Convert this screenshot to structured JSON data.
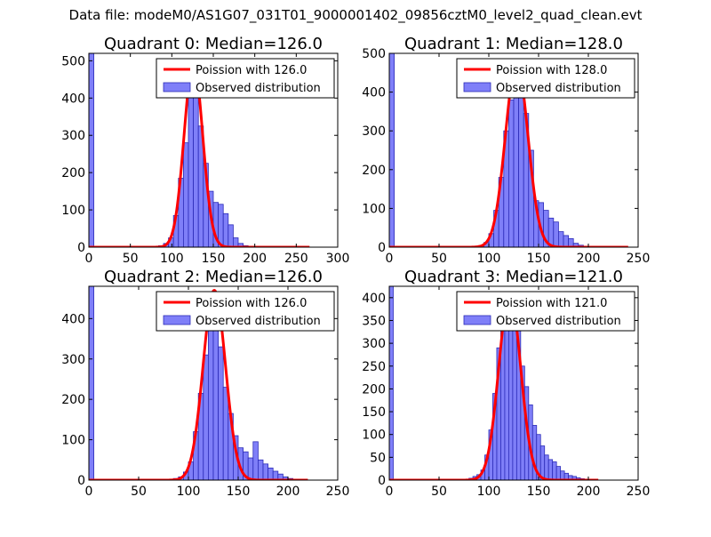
{
  "figure": {
    "suptitle": "Data file: modeM0/AS1G07_031T01_9000001402_09856cztM0_level2_quad_clean.evt"
  },
  "colors": {
    "hist_fill": "#7f7ff8",
    "hist_edge": "#2b2bb8",
    "poisson_line": "#ff0000",
    "axes": "#000000",
    "background": "#ffffff"
  },
  "chart_data": [
    {
      "type": "bar",
      "title": "Quadrant 0: Median=126.0",
      "xlim": [
        0,
        300
      ],
      "ylim": [
        0,
        520
      ],
      "xticks": [
        0,
        50,
        100,
        150,
        200,
        250,
        300
      ],
      "yticks": [
        0,
        100,
        200,
        300,
        400,
        500
      ],
      "legend_position": "top-right",
      "legend": [
        "Poission with 126.0",
        "Observed distribution"
      ],
      "bin_width": 6,
      "bins": [
        [
          0,
          520
        ],
        [
          84,
          4
        ],
        [
          90,
          10
        ],
        [
          96,
          25
        ],
        [
          102,
          85
        ],
        [
          108,
          185
        ],
        [
          114,
          280
        ],
        [
          120,
          415
        ],
        [
          126,
          435
        ],
        [
          132,
          325
        ],
        [
          138,
          225
        ],
        [
          144,
          150
        ],
        [
          150,
          120
        ],
        [
          156,
          115
        ],
        [
          162,
          90
        ],
        [
          168,
          60
        ],
        [
          174,
          25
        ],
        [
          180,
          10
        ],
        [
          186,
          4
        ],
        [
          192,
          2
        ]
      ],
      "series": [
        {
          "name": "Poission with 126.0",
          "mean": 126,
          "peak": 496,
          "x_range": [
            0,
            266
          ]
        },
        {
          "name": "Observed distribution"
        }
      ]
    },
    {
      "type": "bar",
      "title": "Quadrant 1: Median=128.0",
      "xlim": [
        0,
        250
      ],
      "ylim": [
        0,
        500
      ],
      "xticks": [
        0,
        50,
        100,
        150,
        200,
        250
      ],
      "yticks": [
        0,
        100,
        200,
        300,
        400,
        500
      ],
      "legend_position": "top-right",
      "legend": [
        "Poission with 128.0",
        "Observed distribution"
      ],
      "bin_width": 5,
      "bins": [
        [
          0,
          500
        ],
        [
          90,
          4
        ],
        [
          95,
          12
        ],
        [
          100,
          35
        ],
        [
          105,
          95
        ],
        [
          110,
          180
        ],
        [
          115,
          300
        ],
        [
          120,
          380
        ],
        [
          125,
          430
        ],
        [
          130,
          410
        ],
        [
          135,
          345
        ],
        [
          140,
          250
        ],
        [
          145,
          120
        ],
        [
          150,
          115
        ],
        [
          155,
          95
        ],
        [
          160,
          75
        ],
        [
          165,
          65
        ],
        [
          170,
          40
        ],
        [
          175,
          30
        ],
        [
          180,
          22
        ],
        [
          185,
          10
        ],
        [
          190,
          5
        ],
        [
          195,
          2
        ]
      ],
      "series": [
        {
          "name": "Poission with 128.0",
          "mean": 128,
          "peak": 476,
          "x_range": [
            0,
            240
          ]
        },
        {
          "name": "Observed distribution"
        }
      ]
    },
    {
      "type": "bar",
      "title": "Quadrant 2: Median=126.0",
      "xlim": [
        0,
        250
      ],
      "ylim": [
        0,
        480
      ],
      "xticks": [
        0,
        50,
        100,
        150,
        200,
        250
      ],
      "yticks": [
        0,
        100,
        200,
        300,
        400
      ],
      "legend_position": "top-right",
      "legend": [
        "Poission with 126.0",
        "Observed distribution"
      ],
      "bin_width": 5,
      "bins": [
        [
          0,
          480
        ],
        [
          85,
          4
        ],
        [
          90,
          8
        ],
        [
          95,
          20
        ],
        [
          100,
          45
        ],
        [
          105,
          120
        ],
        [
          110,
          215
        ],
        [
          115,
          310
        ],
        [
          120,
          410
        ],
        [
          125,
          420
        ],
        [
          130,
          330
        ],
        [
          135,
          230
        ],
        [
          140,
          165
        ],
        [
          145,
          110
        ],
        [
          150,
          80
        ],
        [
          155,
          70
        ],
        [
          160,
          55
        ],
        [
          165,
          95
        ],
        [
          170,
          50
        ],
        [
          175,
          40
        ],
        [
          180,
          30
        ],
        [
          185,
          22
        ],
        [
          190,
          15
        ],
        [
          195,
          8
        ],
        [
          200,
          4
        ],
        [
          205,
          2
        ]
      ],
      "series": [
        {
          "name": "Poission with 126.0",
          "mean": 126,
          "peak": 470,
          "x_range": [
            0,
            220
          ]
        },
        {
          "name": "Observed distribution"
        }
      ]
    },
    {
      "type": "bar",
      "title": "Quadrant 3: Median=121.0",
      "xlim": [
        0,
        250
      ],
      "ylim": [
        0,
        425
      ],
      "xticks": [
        0,
        50,
        100,
        150,
        200,
        250
      ],
      "yticks": [
        0,
        50,
        100,
        150,
        200,
        250,
        300,
        350,
        400
      ],
      "legend_position": "top-right",
      "legend": [
        "Poission with 121.0",
        "Observed distribution"
      ],
      "bin_width": 4,
      "bins": [
        [
          0,
          425
        ],
        [
          80,
          4
        ],
        [
          84,
          8
        ],
        [
          88,
          12
        ],
        [
          92,
          22
        ],
        [
          96,
          55
        ],
        [
          100,
          110
        ],
        [
          104,
          190
        ],
        [
          108,
          290
        ],
        [
          112,
          365
        ],
        [
          116,
          380
        ],
        [
          120,
          395
        ],
        [
          124,
          380
        ],
        [
          128,
          330
        ],
        [
          132,
          250
        ],
        [
          136,
          205
        ],
        [
          140,
          165
        ],
        [
          144,
          120
        ],
        [
          148,
          100
        ],
        [
          152,
          75
        ],
        [
          156,
          55
        ],
        [
          160,
          45
        ],
        [
          164,
          40
        ],
        [
          168,
          30
        ],
        [
          172,
          20
        ],
        [
          176,
          15
        ],
        [
          180,
          10
        ],
        [
          184,
          8
        ],
        [
          188,
          5
        ],
        [
          192,
          3
        ],
        [
          196,
          2
        ]
      ],
      "series": [
        {
          "name": "Poission with 121.0",
          "mean": 121,
          "peak": 408,
          "x_range": [
            0,
            210
          ]
        },
        {
          "name": "Observed distribution"
        }
      ]
    }
  ]
}
